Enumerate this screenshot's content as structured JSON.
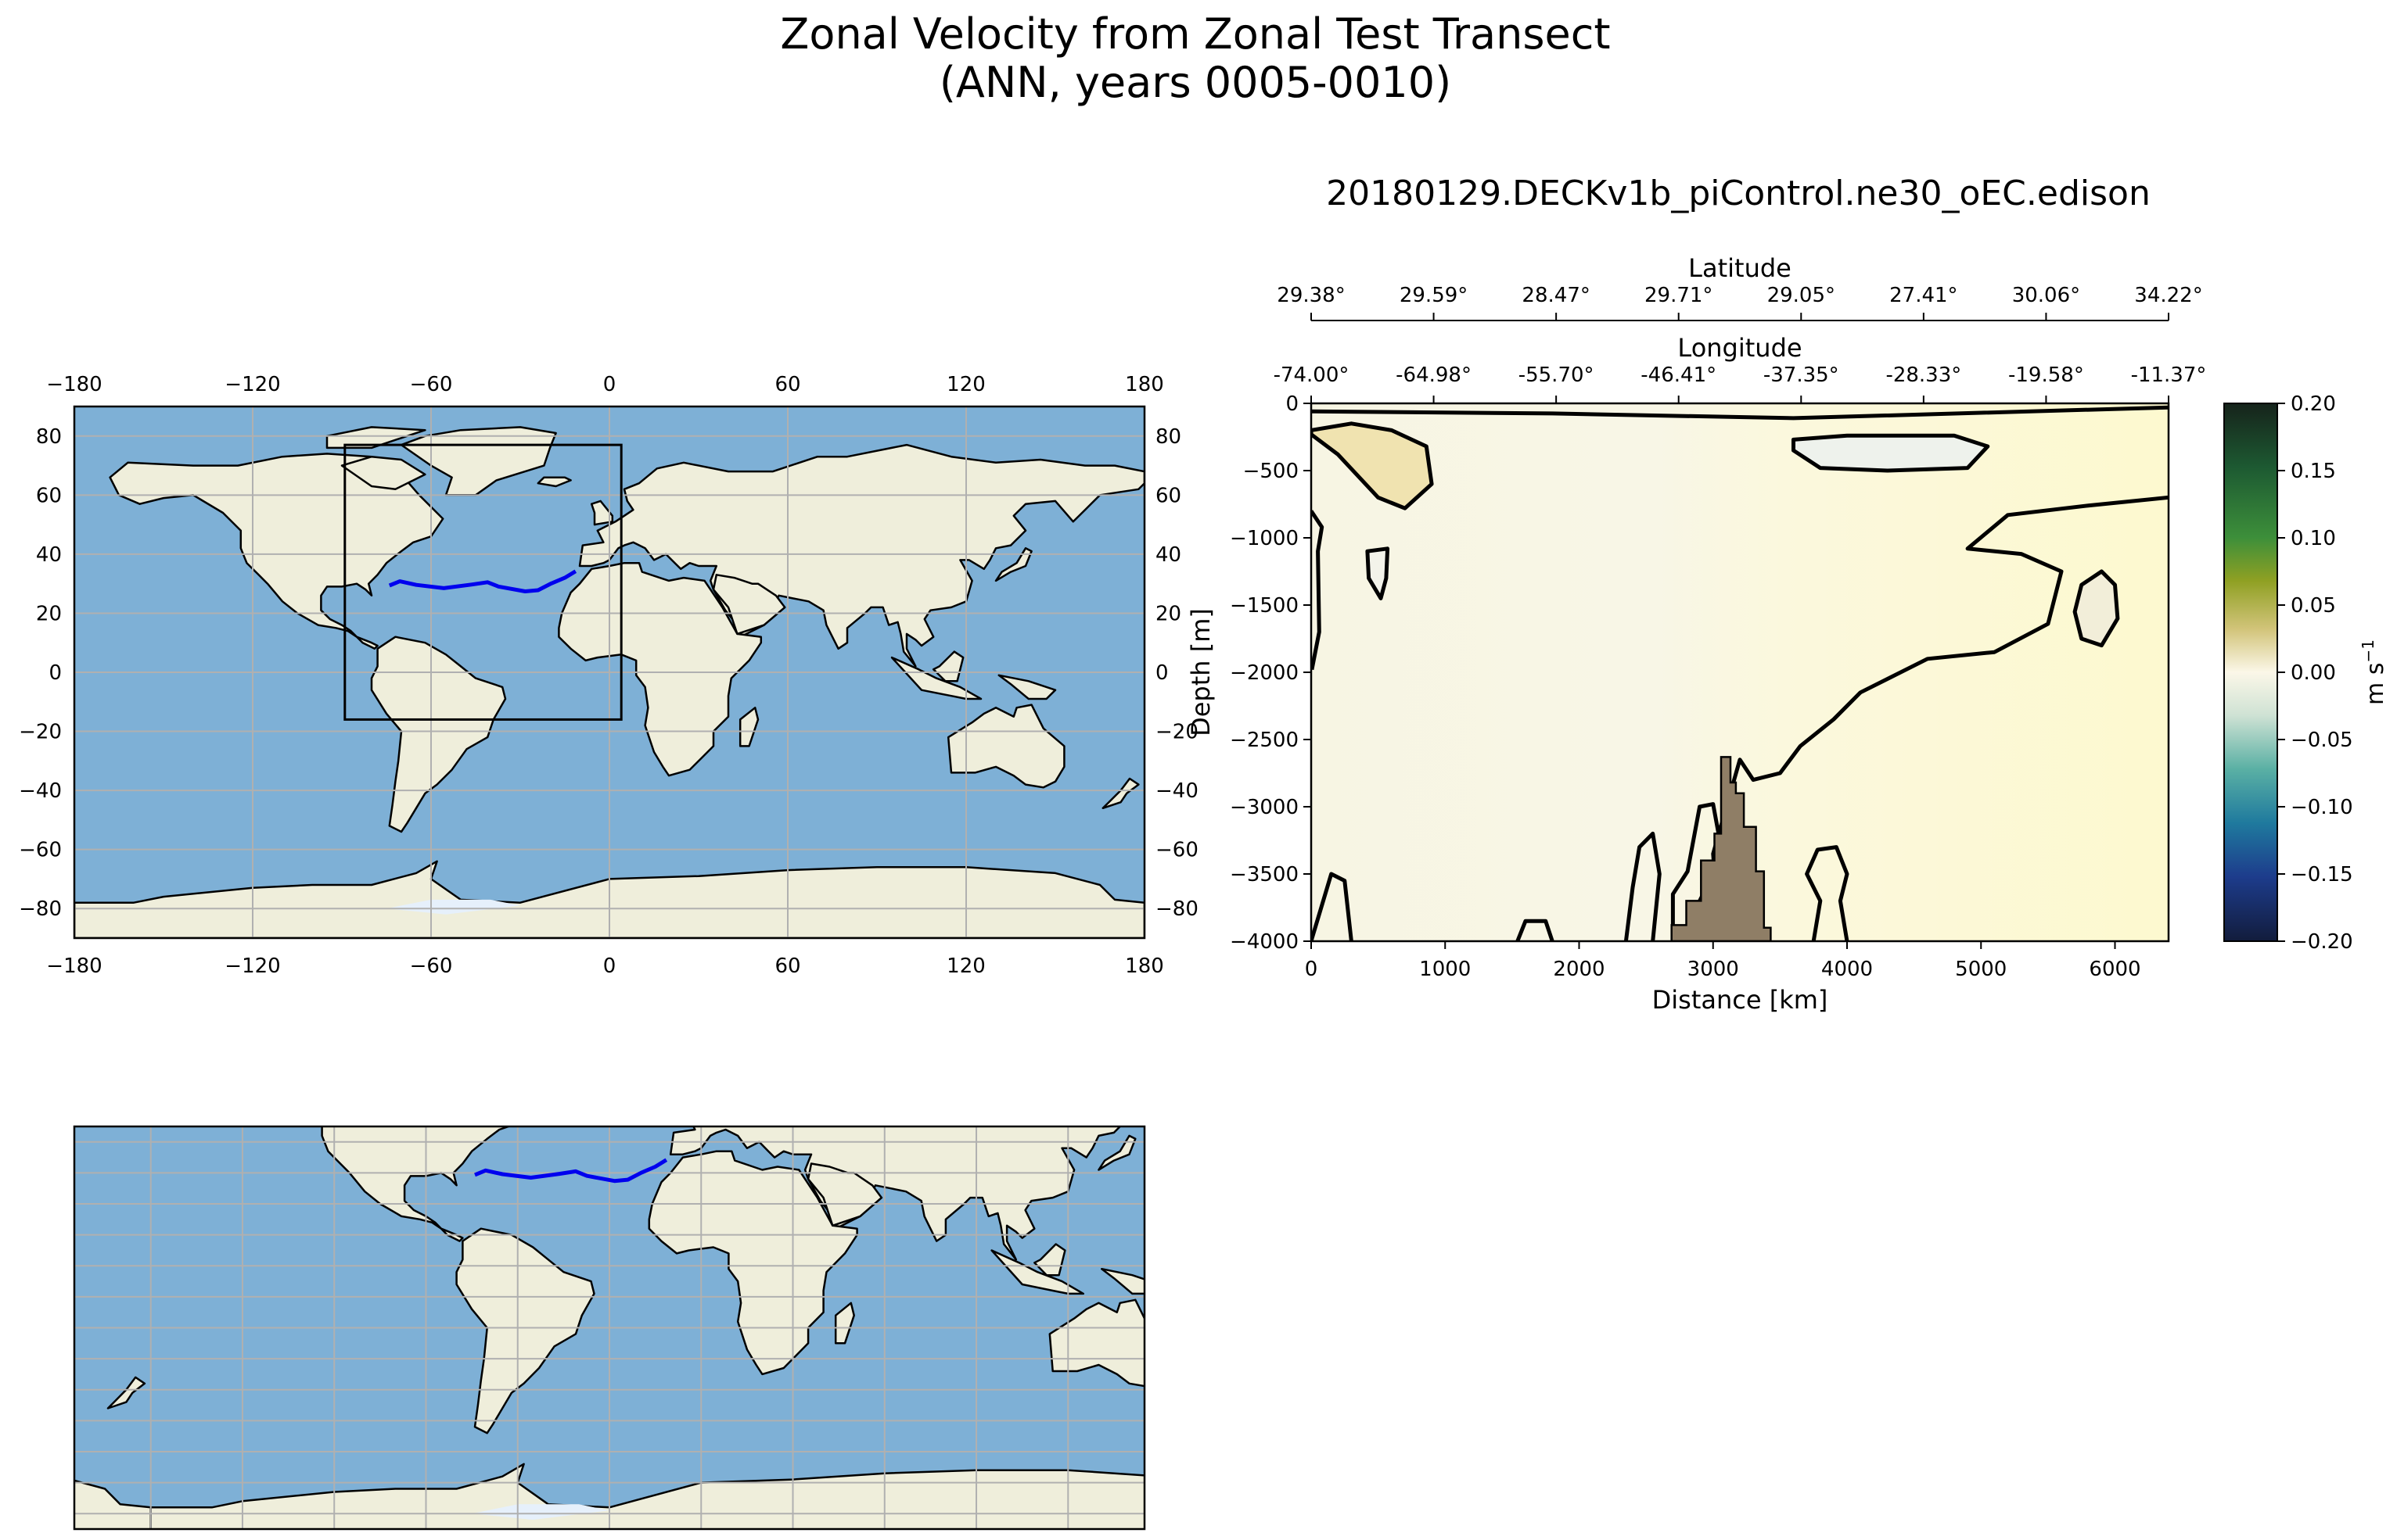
{
  "figure": {
    "title_line1": "Zonal Velocity from Zonal Test Transect",
    "title_line2": "(ANN, years 0005-0010)"
  },
  "colors": {
    "ocean": "#7eb0d6",
    "land": "#efeedb",
    "ice": "#e6f0fb",
    "transect": "#0000ee",
    "grid": "#b0b0b0",
    "topography": "#8f7e66"
  },
  "map_top": {
    "x_ticks": [
      "−180",
      "−120",
      "−60",
      "0",
      "60",
      "120",
      "180"
    ],
    "y_ticks": [
      "80",
      "60",
      "40",
      "20",
      "0",
      "−20",
      "−40",
      "−60",
      "−80"
    ],
    "lon_range": [
      -180,
      180
    ],
    "lat_range": [
      -90,
      90
    ],
    "box_lon": [
      -89,
      4
    ],
    "box_lat": [
      -16,
      77
    ]
  },
  "map_bottom": {
    "central_longitude": -30,
    "lat_range": [
      -90,
      90
    ]
  },
  "transect_path": {
    "lon": [
      -74.0,
      -70.5,
      -64.98,
      -55.7,
      -46.41,
      -41.0,
      -37.35,
      -28.33,
      -24.0,
      -19.58,
      -15.0,
      -11.37
    ],
    "lat": [
      29.38,
      30.8,
      29.59,
      28.47,
      29.71,
      30.5,
      29.05,
      27.41,
      27.8,
      30.06,
      32.0,
      34.22
    ]
  },
  "section": {
    "title": "20180129.DECKv1b_piControl.ne30_oEC.edison",
    "latitude_label": "Latitude",
    "longitude_label": "Longitude",
    "latitude_ticks": [
      "29.38°",
      "29.59°",
      "28.47°",
      "29.71°",
      "29.05°",
      "27.41°",
      "30.06°",
      "34.22°"
    ],
    "longitude_ticks": [
      "-74.00°",
      "-64.98°",
      "-55.70°",
      "-46.41°",
      "-37.35°",
      "-28.33°",
      "-19.58°",
      "-11.37°"
    ]
  },
  "chart_data": {
    "type": "heatmap",
    "xlabel": "Distance [km]",
    "ylabel": "Depth [m]",
    "xlim": [
      0,
      6400
    ],
    "ylim": [
      -4000,
      0
    ],
    "x_ticks": [
      0,
      1000,
      2000,
      3000,
      4000,
      5000,
      6000
    ],
    "y_ticks": [
      0,
      -500,
      -1000,
      -1500,
      -2000,
      -2500,
      -3000,
      -3500,
      -4000
    ],
    "colorbar": {
      "label_unit": "m s",
      "label_exp": "−1",
      "ticks": [
        "0.20",
        "0.15",
        "0.10",
        "0.05",
        "0.00",
        "−0.05",
        "−0.10",
        "−0.15",
        "−0.20"
      ],
      "range": [
        -0.2,
        0.2
      ]
    },
    "contour_level": 0.0,
    "zero_contours": [
      [
        [
          0,
          -230
        ],
        [
          200,
          -380
        ],
        [
          500,
          -700
        ],
        [
          700,
          -780
        ],
        [
          900,
          -600
        ],
        [
          860,
          -320
        ],
        [
          600,
          -200
        ],
        [
          300,
          -150
        ],
        [
          0,
          -200
        ]
      ],
      [
        [
          420,
          -1100
        ],
        [
          570,
          -1080
        ],
        [
          560,
          -1300
        ],
        [
          520,
          -1450
        ],
        [
          430,
          -1300
        ]
      ],
      [
        [
          5750,
          -1350
        ],
        [
          5900,
          -1250
        ],
        [
          6000,
          -1350
        ],
        [
          6020,
          -1600
        ],
        [
          5900,
          -1800
        ],
        [
          5750,
          -1750
        ],
        [
          5700,
          -1550
        ]
      ],
      [
        [
          3600,
          -270
        ],
        [
          4000,
          -240
        ],
        [
          4800,
          -240
        ],
        [
          5050,
          -320
        ],
        [
          4900,
          -480
        ],
        [
          4300,
          -500
        ],
        [
          3800,
          -480
        ],
        [
          3600,
          -350
        ]
      ]
    ],
    "zero_contour_lines": [
      [
        [
          5,
          -1980
        ],
        [
          60,
          -1700
        ],
        [
          50,
          -1100
        ],
        [
          80,
          -920
        ],
        [
          0,
          -800
        ]
      ],
      [
        [
          6400,
          -700
        ],
        [
          5800,
          -760
        ],
        [
          5200,
          -830
        ],
        [
          4900,
          -1080
        ],
        [
          5300,
          -1120
        ],
        [
          5600,
          -1250
        ],
        [
          5500,
          -1640
        ],
        [
          5100,
          -1850
        ],
        [
          4600,
          -1900
        ],
        [
          4100,
          -2150
        ],
        [
          3900,
          -2350
        ],
        [
          3650,
          -2550
        ],
        [
          3500,
          -2750
        ],
        [
          3300,
          -2800
        ],
        [
          3200,
          -2650
        ],
        [
          3100,
          -3000
        ],
        [
          3000,
          -3350
        ],
        [
          3050,
          -4000
        ]
      ],
      [
        [
          2700,
          -4000
        ],
        [
          2700,
          -3650
        ],
        [
          2810,
          -3480
        ],
        [
          2900,
          -3000
        ],
        [
          3000,
          -2980
        ],
        [
          3050,
          -3250
        ],
        [
          2950,
          -3600
        ],
        [
          2800,
          -3900
        ],
        [
          2750,
          -4000
        ]
      ],
      [
        [
          3750,
          -4000
        ],
        [
          3800,
          -3700
        ],
        [
          3700,
          -3500
        ],
        [
          3780,
          -3320
        ],
        [
          3920,
          -3300
        ],
        [
          4000,
          -3500
        ],
        [
          3950,
          -3700
        ],
        [
          4000,
          -4000
        ]
      ],
      [
        [
          2350,
          -4000
        ],
        [
          2400,
          -3600
        ],
        [
          2450,
          -3300
        ],
        [
          2550,
          -3200
        ],
        [
          2600,
          -3500
        ],
        [
          2550,
          -4000
        ]
      ],
      [
        [
          0,
          -4000
        ],
        [
          150,
          -3500
        ],
        [
          250,
          -3550
        ],
        [
          300,
          -4000
        ]
      ],
      [
        [
          1540,
          -4000
        ],
        [
          1600,
          -3850
        ],
        [
          1750,
          -3850
        ],
        [
          1800,
          -4000
        ]
      ],
      [
        [
          0,
          -60
        ],
        [
          1800,
          -75
        ],
        [
          3600,
          -110
        ],
        [
          6400,
          -30
        ]
      ]
    ],
    "topography": [
      [
        2690,
        -4000
      ],
      [
        2690,
        -3880
      ],
      [
        2800,
        -3880
      ],
      [
        2800,
        -3700
      ],
      [
        2910,
        -3700
      ],
      [
        2910,
        -3400
      ],
      [
        3010,
        -3400
      ],
      [
        3010,
        -3200
      ],
      [
        3060,
        -3200
      ],
      [
        3060,
        -2630
      ],
      [
        3130,
        -2630
      ],
      [
        3130,
        -2820
      ],
      [
        3170,
        -2820
      ],
      [
        3170,
        -2900
      ],
      [
        3230,
        -2900
      ],
      [
        3230,
        -3150
      ],
      [
        3320,
        -3150
      ],
      [
        3320,
        -3480
      ],
      [
        3380,
        -3480
      ],
      [
        3380,
        -3900
      ],
      [
        3430,
        -3900
      ],
      [
        3430,
        -4000
      ]
    ]
  }
}
